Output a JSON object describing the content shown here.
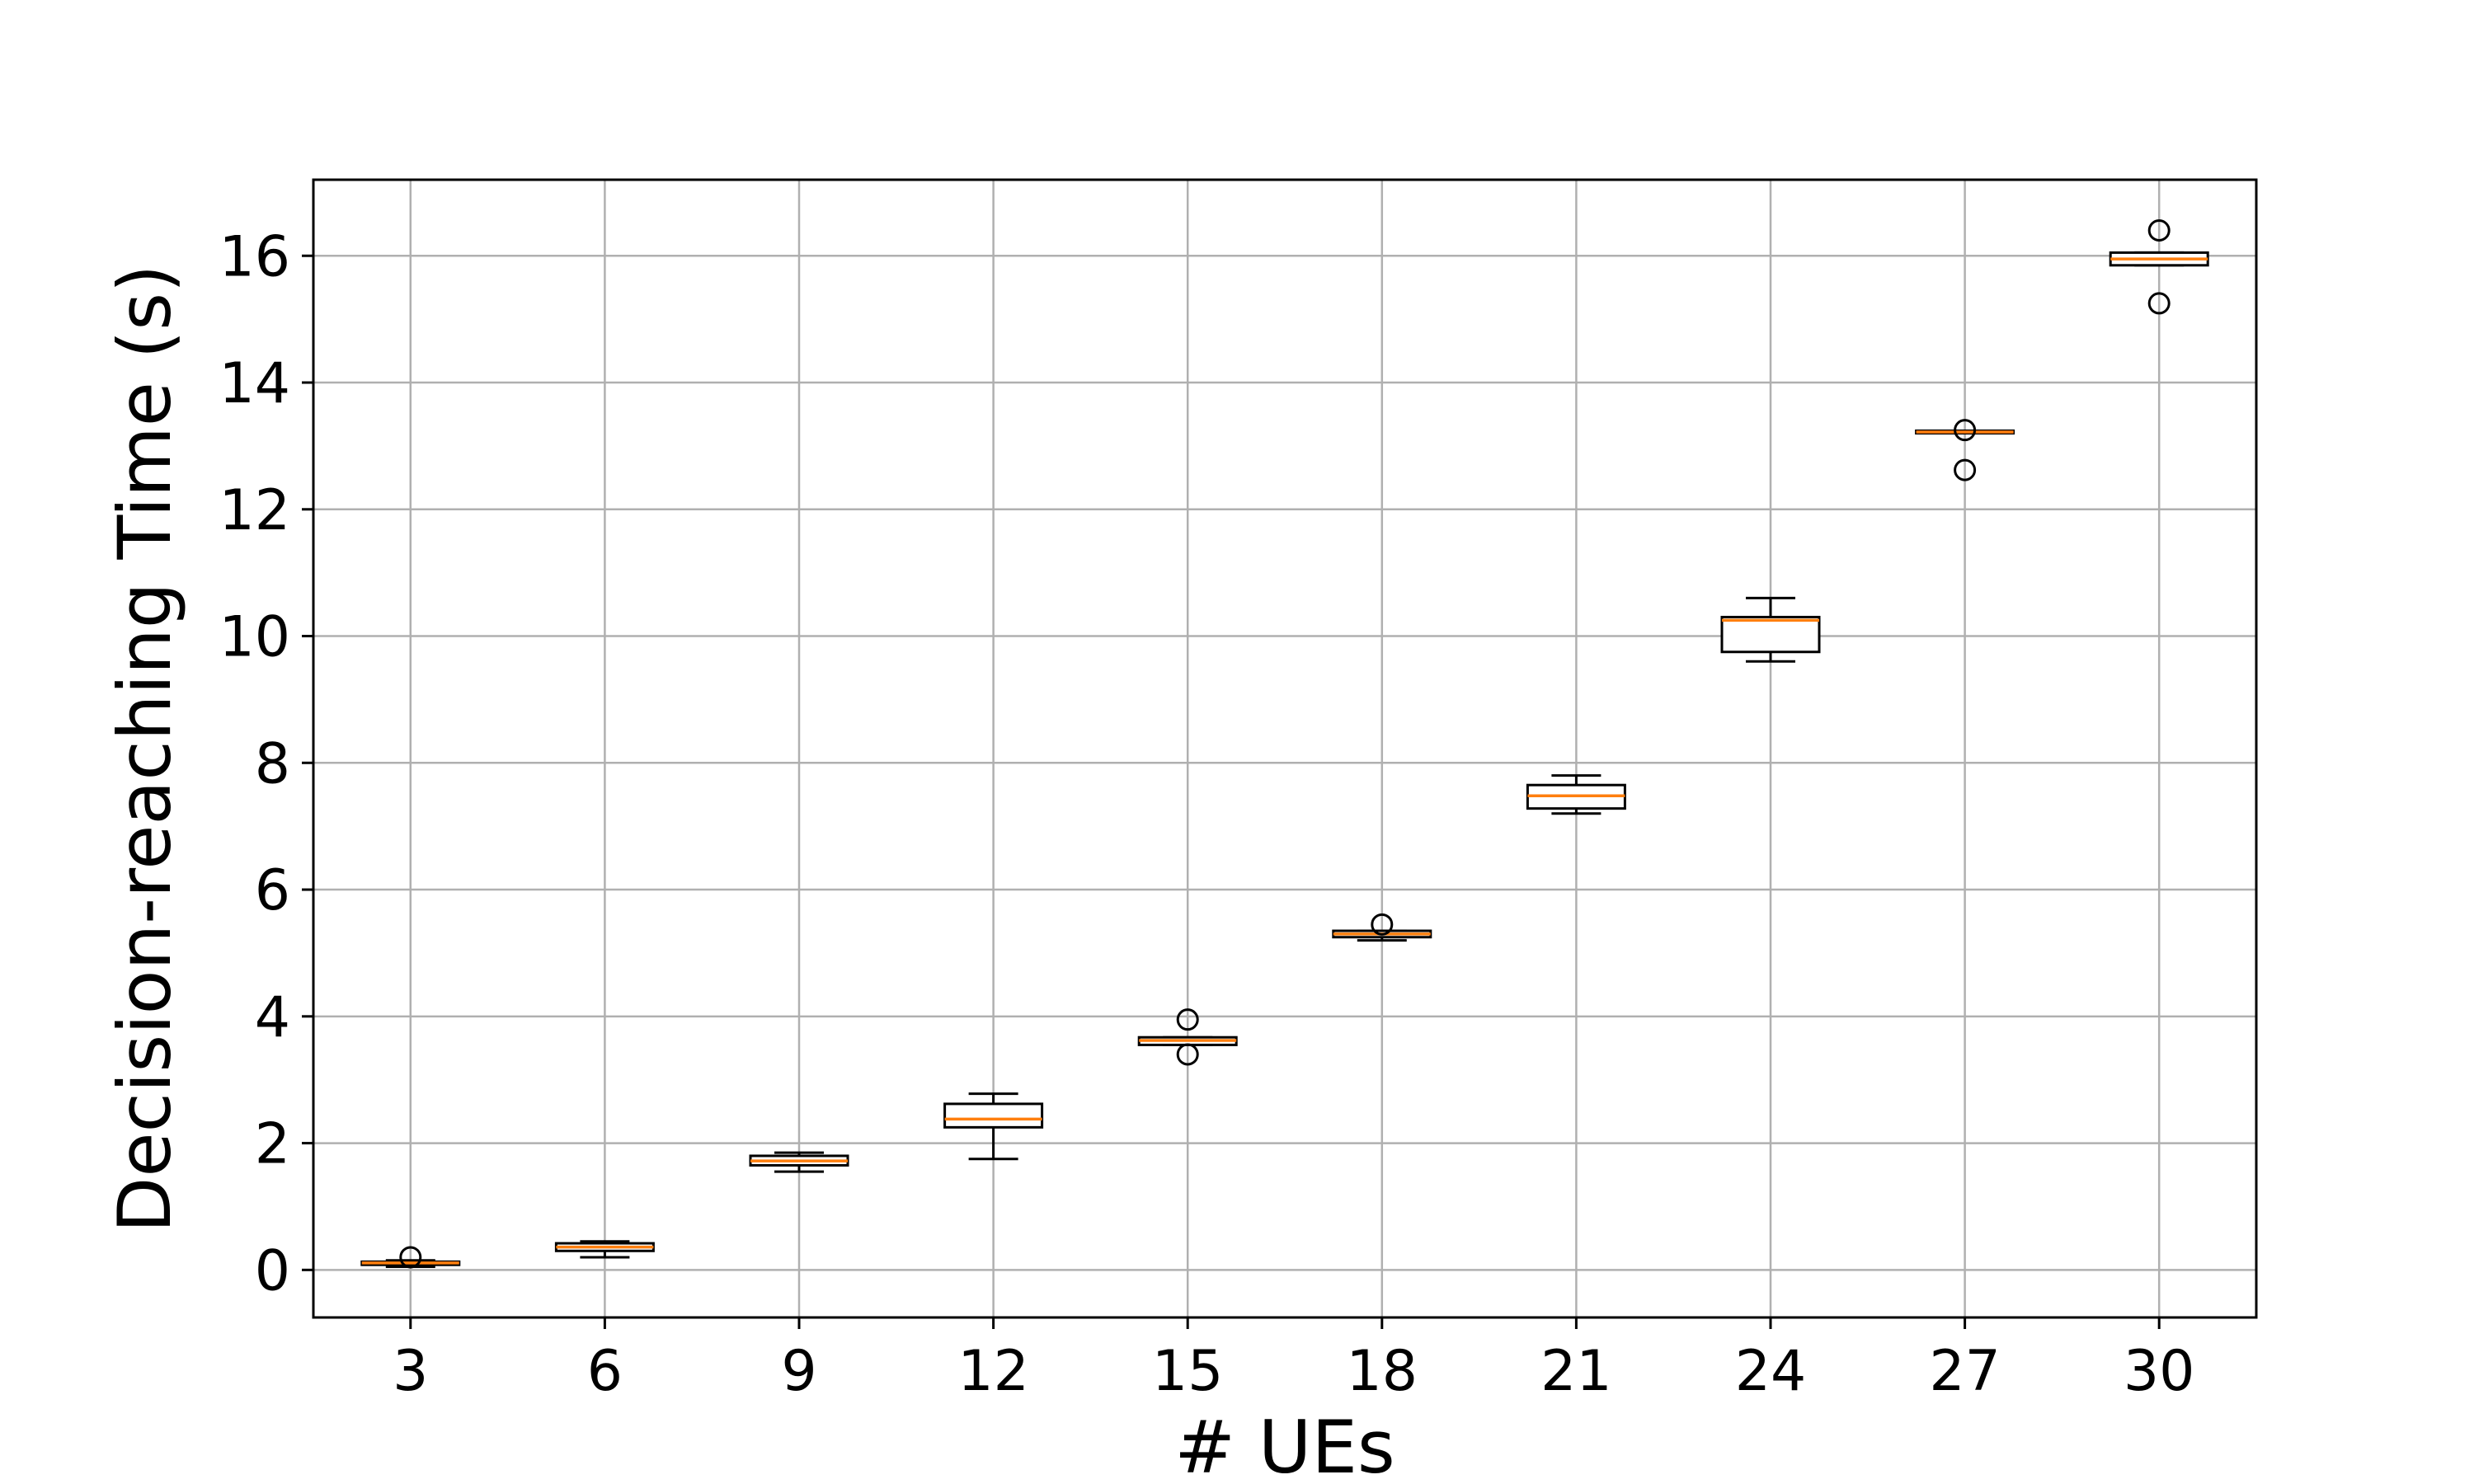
{
  "chart_data": {
    "type": "box",
    "title": "",
    "xlabel": "# UEs",
    "ylabel": "Decision-reaching Time (s)",
    "categories": [
      "3",
      "6",
      "9",
      "12",
      "15",
      "18",
      "21",
      "24",
      "27",
      "30"
    ],
    "ylim": [
      -0.75,
      17.2
    ],
    "yticks": [
      0,
      2,
      4,
      6,
      8,
      10,
      12,
      14,
      16
    ],
    "ytick_labels": [
      "0",
      "2",
      "4",
      "6",
      "8",
      "10",
      "12",
      "14",
      "16"
    ],
    "grid": true,
    "boxes": [
      {
        "category": "3",
        "whisker_low": 0.05,
        "q1": 0.08,
        "median": 0.11,
        "q3": 0.13,
        "whisker_high": 0.15,
        "outliers": [
          0.2
        ]
      },
      {
        "category": "6",
        "whisker_low": 0.2,
        "q1": 0.3,
        "median": 0.36,
        "q3": 0.42,
        "whisker_high": 0.45,
        "outliers": []
      },
      {
        "category": "9",
        "whisker_low": 1.55,
        "q1": 1.65,
        "median": 1.72,
        "q3": 1.8,
        "whisker_high": 1.85,
        "outliers": []
      },
      {
        "category": "12",
        "whisker_low": 1.75,
        "q1": 2.25,
        "median": 2.38,
        "q3": 2.62,
        "whisker_high": 2.78,
        "outliers": []
      },
      {
        "category": "15",
        "whisker_low": 3.55,
        "q1": 3.55,
        "median": 3.62,
        "q3": 3.67,
        "whisker_high": 3.67,
        "outliers": [
          3.95,
          3.4
        ]
      },
      {
        "category": "18",
        "whisker_low": 5.2,
        "q1": 5.25,
        "median": 5.3,
        "q3": 5.35,
        "whisker_high": 5.35,
        "outliers": [
          5.45
        ]
      },
      {
        "category": "21",
        "whisker_low": 7.2,
        "q1": 7.28,
        "median": 7.48,
        "q3": 7.65,
        "whisker_high": 7.8,
        "outliers": []
      },
      {
        "category": "24",
        "whisker_low": 9.6,
        "q1": 9.75,
        "median": 10.25,
        "q3": 10.3,
        "whisker_high": 10.6,
        "outliers": []
      },
      {
        "category": "27",
        "whisker_low": 13.2,
        "q1": 13.2,
        "median": 13.22,
        "q3": 13.24,
        "whisker_high": 13.24,
        "outliers": [
          13.25,
          12.62
        ]
      },
      {
        "category": "30",
        "whisker_low": 15.85,
        "q1": 15.85,
        "median": 15.95,
        "q3": 16.05,
        "whisker_high": 16.05,
        "outliers": [
          16.4,
          15.25
        ]
      }
    ],
    "colors": {
      "box": "#000000",
      "median": "#ff7f0e",
      "grid": "#b0b0b0"
    }
  }
}
